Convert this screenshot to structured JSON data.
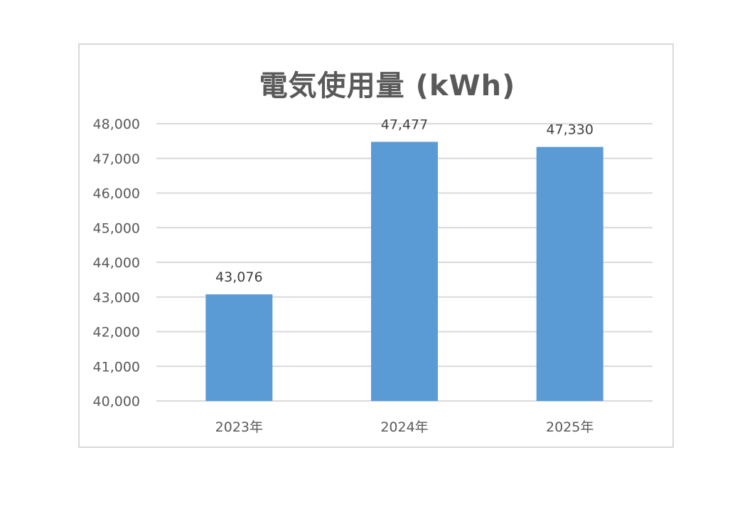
{
  "chart_data": {
    "type": "bar",
    "title": "電気使用量 (kWh)",
    "categories": [
      "2023年",
      "2024年",
      "2025年"
    ],
    "values": [
      43076,
      47477,
      47330
    ],
    "data_labels": [
      "43,076",
      "47,477",
      "47,330"
    ],
    "y_ticks": [
      "40,000",
      "41,000",
      "42,000",
      "43,000",
      "44,000",
      "45,000",
      "46,000",
      "47,000",
      "48,000"
    ],
    "ylim": [
      40000,
      48000
    ],
    "grid": true,
    "legend": "none",
    "bar_color": "#5b9bd5",
    "grid_color": "#d9d9d9"
  }
}
